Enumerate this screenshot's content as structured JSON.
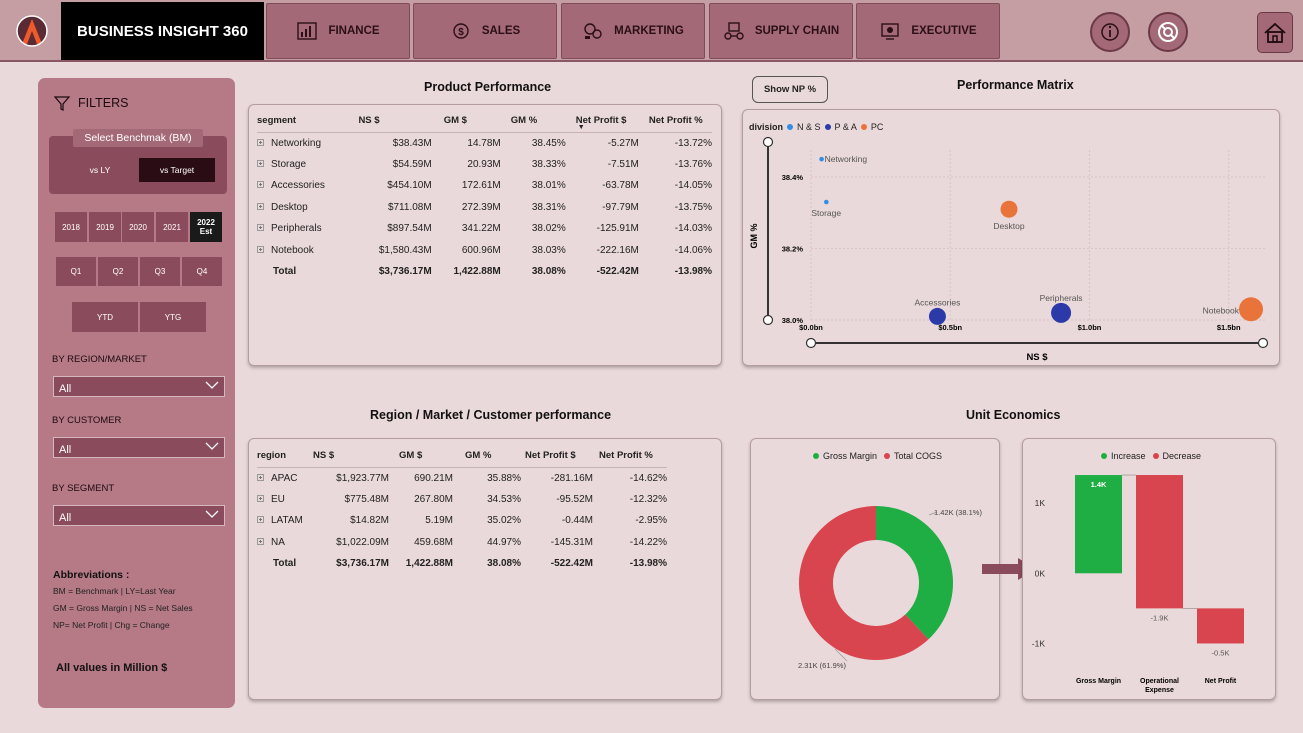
{
  "header": {
    "title": "BUSINESS INSIGHT 360",
    "nav": [
      {
        "label": "FINANCE",
        "icon": "finance-icon"
      },
      {
        "label": "SALES",
        "icon": "sales-icon"
      },
      {
        "label": "MARKETING",
        "icon": "marketing-icon"
      },
      {
        "label": "SUPPLY CHAIN",
        "icon": "supply-chain-icon"
      },
      {
        "label": "EXECUTIVE",
        "icon": "executive-icon"
      }
    ]
  },
  "filters": {
    "title": "FILTERS",
    "benchmark_label": "Select Benchmak (BM)",
    "benchmark_options": [
      "vs LY",
      "vs Target"
    ],
    "benchmark_selected": "vs Target",
    "years": [
      "2018",
      "2019",
      "2020",
      "2021",
      "2022"
    ],
    "year_selected_sub": "Est",
    "quarters": [
      "Q1",
      "Q2",
      "Q3",
      "Q4"
    ],
    "ytd": [
      "YTD",
      "YTG"
    ],
    "region_label": "BY REGION/MARKET",
    "region_value": "All",
    "customer_label": "BY CUSTOMER",
    "customer_value": "All",
    "segment_label": "BY SEGMENT",
    "segment_value": "All",
    "abbr_title": "Abbreviations :",
    "abbr_lines": [
      "BM = Benchmark | LY=Last Year",
      "GM = Gross Margin | NS = Net Sales",
      "NP= Net Profit | Chg = Change"
    ],
    "all_values": "All values in Million $"
  },
  "product_performance": {
    "title": "Product Performance",
    "columns": [
      "segment",
      "NS $",
      "GM $",
      "GM %",
      "Net Profit $",
      "Net Profit %"
    ],
    "rows": [
      [
        "Networking",
        "$38.43M",
        "14.78M",
        "38.45%",
        "-5.27M",
        "-13.72%"
      ],
      [
        "Storage",
        "$54.59M",
        "20.93M",
        "38.33%",
        "-7.51M",
        "-13.76%"
      ],
      [
        "Accessories",
        "$454.10M",
        "172.61M",
        "38.01%",
        "-63.78M",
        "-14.05%"
      ],
      [
        "Desktop",
        "$711.08M",
        "272.39M",
        "38.31%",
        "-97.79M",
        "-13.75%"
      ],
      [
        "Peripherals",
        "$897.54M",
        "341.22M",
        "38.02%",
        "-125.91M",
        "-14.03%"
      ],
      [
        "Notebook",
        "$1,580.43M",
        "600.96M",
        "38.03%",
        "-222.16M",
        "-14.06%"
      ]
    ],
    "total": [
      "Total",
      "$3,736.17M",
      "1,422.88M",
      "38.08%",
      "-522.42M",
      "-13.98%"
    ]
  },
  "performance_matrix": {
    "title": "Performance Matrix",
    "show_np_button": "Show NP %",
    "legend_title": "division",
    "legend": [
      {
        "name": "N & S",
        "color": "#2f8ee8"
      },
      {
        "name": "P & A",
        "color": "#2b3aa8"
      },
      {
        "name": "PC",
        "color": "#e8743b"
      }
    ],
    "xlabel": "NS $",
    "ylabel": "GM %",
    "x_ticks": [
      "$0.0bn",
      "$0.5bn",
      "$1.0bn",
      "$1.5bn"
    ],
    "y_ticks": [
      "38.0%",
      "38.2%",
      "38.4%"
    ]
  },
  "region_performance": {
    "title": "Region / Market / Customer performance",
    "columns": [
      "region",
      "NS $",
      "GM $",
      "GM %",
      "Net Profit $",
      "Net Profit %"
    ],
    "rows": [
      [
        "APAC",
        "$1,923.77M",
        "690.21M",
        "35.88%",
        "-281.16M",
        "-14.62%"
      ],
      [
        "EU",
        "$775.48M",
        "267.80M",
        "34.53%",
        "-95.52M",
        "-12.32%"
      ],
      [
        "LATAM",
        "$14.82M",
        "5.19M",
        "35.02%",
        "-0.44M",
        "-2.95%"
      ],
      [
        "NA",
        "$1,022.09M",
        "459.68M",
        "44.97%",
        "-145.31M",
        "-14.22%"
      ]
    ],
    "total": [
      "Total",
      "$3,736.17M",
      "1,422.88M",
      "38.08%",
      "-522.42M",
      "-13.98%"
    ]
  },
  "unit_economics": {
    "title": "Unit Economics"
  },
  "chart_data": [
    {
      "type": "scatter",
      "title": "Performance Matrix",
      "xlabel": "NS $",
      "ylabel": "GM %",
      "xlim": [
        0,
        1.58
      ],
      "ylim": [
        38.0,
        38.47
      ],
      "series": [
        {
          "name": "N & S",
          "color": "#2f8ee8",
          "points": [
            {
              "label": "Networking",
              "x": 0.038,
              "y": 38.45,
              "size": 1
            },
            {
              "label": "Storage",
              "x": 0.055,
              "y": 38.33,
              "size": 1
            }
          ]
        },
        {
          "name": "P & A",
          "color": "#2b3aa8",
          "points": [
            {
              "label": "Accessories",
              "x": 0.454,
              "y": 38.01,
              "size": 3
            },
            {
              "label": "Peripherals",
              "x": 0.898,
              "y": 38.02,
              "size": 4
            }
          ]
        },
        {
          "name": "PC",
          "color": "#e8743b",
          "points": [
            {
              "label": "Desktop",
              "x": 0.711,
              "y": 38.31,
              "size": 3
            },
            {
              "label": "Notebook",
              "x": 1.58,
              "y": 38.03,
              "size": 5
            }
          ]
        }
      ]
    },
    {
      "type": "pie",
      "legend": [
        {
          "name": "Gross Margin",
          "color": "#1fae44"
        },
        {
          "name": "Total COGS",
          "color": "#d9454f"
        }
      ],
      "slices": [
        {
          "name": "Gross Margin",
          "value": 1420,
          "label": "1.42K (38.1%)",
          "color": "#1fae44"
        },
        {
          "name": "Total COGS",
          "value": 2310,
          "label": "2.31K (61.9%)",
          "color": "#d9454f"
        }
      ]
    },
    {
      "type": "bar",
      "subtype": "waterfall",
      "legend": [
        {
          "name": "Increase",
          "color": "#1fae44"
        },
        {
          "name": "Decrease",
          "color": "#d9454f"
        }
      ],
      "categories": [
        "Gross Margin",
        "Operational Expense",
        "Net Profit"
      ],
      "values": [
        1.4,
        -1.9,
        -0.5
      ],
      "data_labels": [
        "1.4K",
        "-1.9K",
        "-0.5K"
      ],
      "y_ticks": [
        "1K",
        "0K",
        "-1K"
      ],
      "ylim": [
        -1.25,
        1.6
      ]
    }
  ]
}
